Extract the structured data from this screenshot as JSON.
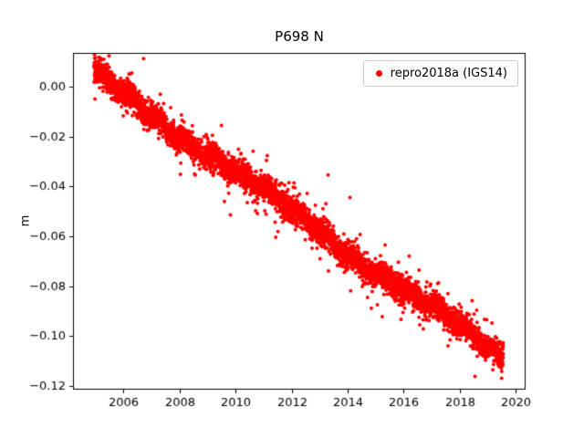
{
  "legend": {
    "label": "repro2018a (IGS14)",
    "marker_color": "#ff0000"
  },
  "chart_data": {
    "type": "scatter",
    "title": "P698 N",
    "xlabel": "",
    "ylabel": "m",
    "xlim": [
      2004.2,
      2020.35
    ],
    "ylim": [
      -0.1215,
      0.0135
    ],
    "xticks": [
      2006,
      2008,
      2010,
      2012,
      2014,
      2016,
      2018,
      2020
    ],
    "yticks": [
      0.0,
      -0.02,
      -0.04,
      -0.06,
      -0.08,
      -0.1,
      -0.12
    ],
    "grid": false,
    "legend_position": "upper right",
    "series": [
      {
        "name": "repro2018a (IGS14)",
        "color": "#ff0000",
        "marker": "dot",
        "marker_radius_px": 2,
        "trend": {
          "x_start": 2004.95,
          "x_end": 2019.55,
          "y_start": 0.005,
          "y_end": -0.109,
          "slope_m_per_yr": -0.0078
        },
        "seasonal_amplitude_m": 0.0012,
        "noise_std_m": 0.0025,
        "n_points": 5250,
        "sampling": "daily"
      }
    ]
  }
}
